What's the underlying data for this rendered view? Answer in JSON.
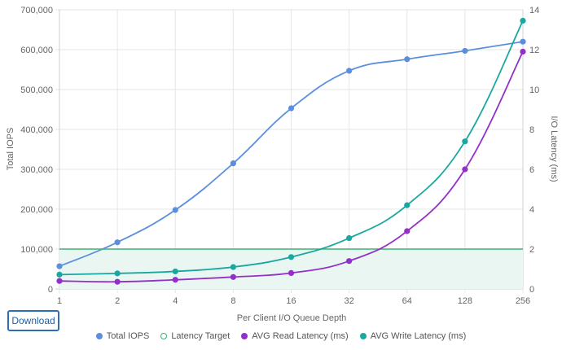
{
  "chart_data": {
    "type": "line",
    "x": [
      1,
      2,
      4,
      8,
      16,
      32,
      64,
      128,
      256
    ],
    "xlabel": "Per Client I/O Queue Depth",
    "xscale": "log2",
    "ylabel": "Total IOPS",
    "ylim": [
      0,
      700000
    ],
    "y_ticks": [
      "0",
      "100,000",
      "200,000",
      "300,000",
      "400,000",
      "500,000",
      "600,000",
      "700,000"
    ],
    "y2label": "I/O Latency (ms)",
    "y2lim": [
      0,
      14
    ],
    "y2_ticks": [
      "0",
      "2",
      "4",
      "6",
      "8",
      "10",
      "12",
      "14"
    ],
    "grid": true,
    "legend_position": "bottom",
    "series": [
      {
        "name": "Total IOPS",
        "axis": "left",
        "color": "#5b8fde",
        "values": [
          57000,
          117000,
          198000,
          315000,
          453000,
          547000,
          576000,
          597000,
          620000
        ]
      },
      {
        "name": "Latency Target",
        "axis": "right",
        "color": "#3cb371",
        "fill": "#eaf6f1",
        "values": [
          2,
          2,
          2,
          2,
          2,
          2,
          2,
          2,
          2
        ]
      },
      {
        "name": "AVG Read Latency (ms)",
        "axis": "right",
        "color": "#9230c8",
        "values": [
          0.4,
          0.36,
          0.46,
          0.6,
          0.8,
          1.4,
          2.9,
          6.0,
          11.9
        ]
      },
      {
        "name": "AVG Write Latency (ms)",
        "axis": "right",
        "color": "#1aa7a0",
        "values": [
          0.72,
          0.78,
          0.88,
          1.1,
          1.6,
          2.55,
          4.2,
          7.4,
          13.45
        ]
      }
    ]
  },
  "ui": {
    "download_label": "Download"
  }
}
